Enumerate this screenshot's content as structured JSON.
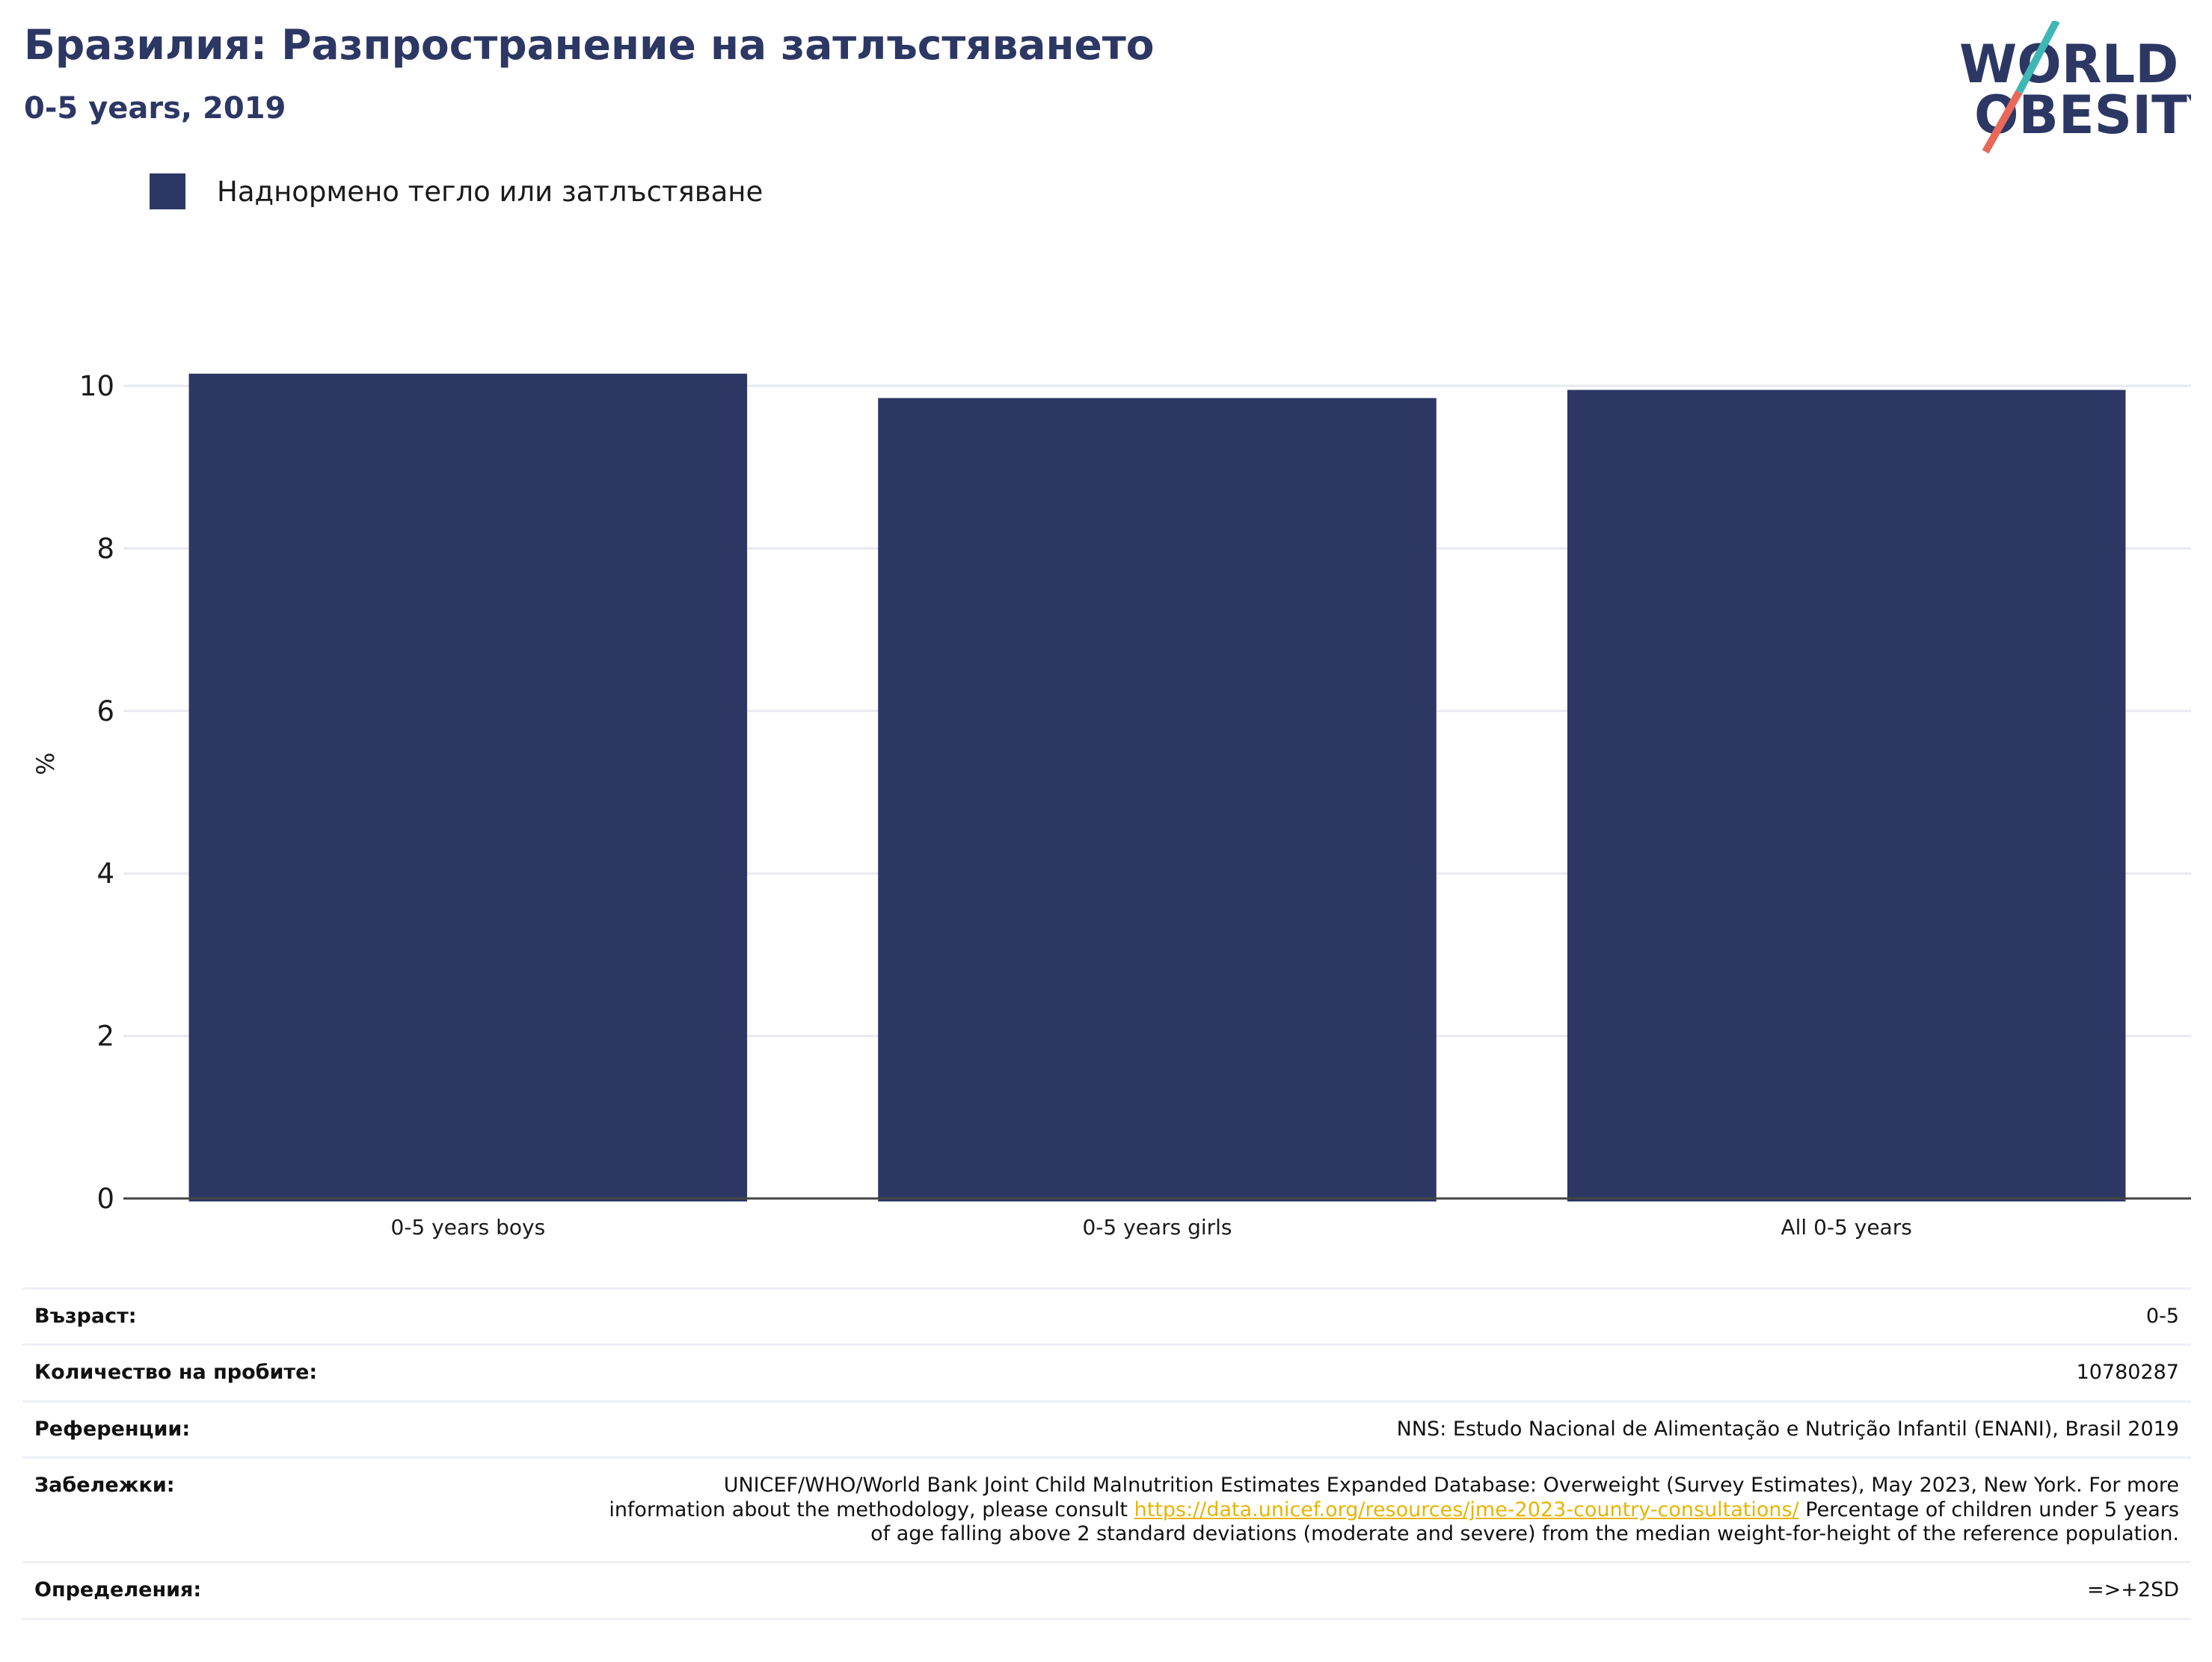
{
  "header": {
    "title": "Бразилия: Разпространение на затлъстяването",
    "subtitle": "0-5 years, 2019"
  },
  "logo": {
    "line1": "WORLD",
    "line2": "OBESITY",
    "colors": {
      "text": "#2c3764",
      "teal": "#3fb8b5",
      "coral": "#e8685a"
    }
  },
  "legend": {
    "label": "Наднормено тегло или затлъстяване",
    "color": "#2c3764"
  },
  "chart_data": {
    "type": "bar",
    "categories": [
      "0-5 years boys",
      "0-5 years girls",
      "All 0-5 years"
    ],
    "series": [
      {
        "name": "Наднормено тегло или затлъстяване",
        "values": [
          10.15,
          9.85,
          9.95
        ],
        "color": "#2c3764"
      }
    ],
    "ylabel": "%",
    "ylim": [
      0,
      10.7
    ],
    "yticks": [
      0,
      2,
      4,
      6,
      8,
      10
    ],
    "grid": true,
    "legend_position": "top-left"
  },
  "info": {
    "age": {
      "label": "Възраст:",
      "value": "0-5"
    },
    "sample": {
      "label": "Количество на пробите:",
      "value": "10780287"
    },
    "references": {
      "label": "Референции:",
      "value": "NNS: Estudo Nacional de Alimentação e Nutrição Infantil (ENANI), Brasil 2019"
    },
    "notes": {
      "label": "Забележки:",
      "text_before": "UNICEF/WHO/World Bank Joint Child Malnutrition Estimates Expanded Database: Overweight (Survey Estimates), May 2023, New York. For more information about the methodology, please consult ",
      "link": "https://data.unicef.org/resources/jme-2023-country-consultations/",
      "text_after": " Percentage of children under 5 years of age falling above 2 standard deviations (moderate and severe) from the median weight-for-height of the reference population."
    },
    "definitions": {
      "label": "Определения:",
      "value": "=>+2SD"
    }
  }
}
